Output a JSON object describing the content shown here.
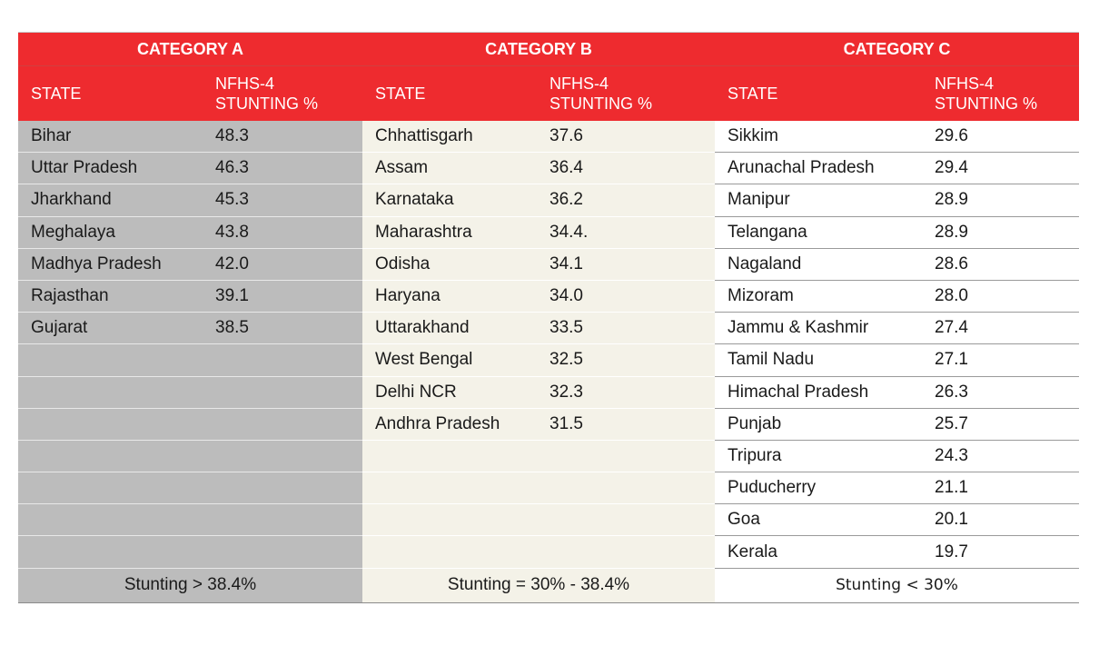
{
  "categories": [
    "CATEGORY A",
    "CATEGORY B",
    "CATEGORY C"
  ],
  "headers": {
    "state": "STATE",
    "stunting_line1": "NFHS-4",
    "stunting_line2": "STUNTING %"
  },
  "rows": [
    {
      "a_state": "Bihar",
      "a_val": "48.3",
      "b_state": "Chhattisgarh",
      "b_val": "37.6",
      "c_state": "Sikkim",
      "c_val": "29.6"
    },
    {
      "a_state": "Uttar Pradesh",
      "a_val": "46.3",
      "b_state": "Assam",
      "b_val": "36.4",
      "c_state": "Arunachal Pradesh",
      "c_val": "29.4"
    },
    {
      "a_state": "Jharkhand",
      "a_val": "45.3",
      "b_state": "Karnataka",
      "b_val": "36.2",
      "c_state": "Manipur",
      "c_val": "28.9"
    },
    {
      "a_state": "Meghalaya",
      "a_val": "43.8",
      "b_state": "Maharashtra",
      "b_val": "34.4.",
      "c_state": "Telangana",
      "c_val": "28.9"
    },
    {
      "a_state": "Madhya Pradesh",
      "a_val": "42.0",
      "b_state": "Odisha",
      "b_val": "34.1",
      "c_state": "Nagaland",
      "c_val": "28.6"
    },
    {
      "a_state": "Rajasthan",
      "a_val": "39.1",
      "b_state": "Haryana",
      "b_val": "34.0",
      "c_state": "Mizoram",
      "c_val": "28.0"
    },
    {
      "a_state": "Gujarat",
      "a_val": "38.5",
      "b_state": "Uttarakhand",
      "b_val": "33.5",
      "c_state": "Jammu & Kashmir",
      "c_val": "27.4"
    },
    {
      "a_state": "",
      "a_val": "",
      "b_state": "West Bengal",
      "b_val": "32.5",
      "c_state": "Tamil Nadu",
      "c_val": "27.1"
    },
    {
      "a_state": "",
      "a_val": "",
      "b_state": "Delhi NCR",
      "b_val": "32.3",
      "c_state": "Himachal Pradesh",
      "c_val": "26.3"
    },
    {
      "a_state": "",
      "a_val": "",
      "b_state": "Andhra Pradesh",
      "b_val": "31.5",
      "c_state": "Punjab",
      "c_val": "25.7"
    },
    {
      "a_state": "",
      "a_val": "",
      "b_state": "",
      "b_val": "",
      "c_state": "Tripura",
      "c_val": "24.3"
    },
    {
      "a_state": "",
      "a_val": "",
      "b_state": "",
      "b_val": "",
      "c_state": "Puducherry",
      "c_val": "21.1"
    },
    {
      "a_state": "",
      "a_val": "",
      "b_state": "",
      "b_val": "",
      "c_state": "Goa",
      "c_val": "20.1"
    },
    {
      "a_state": "",
      "a_val": "",
      "b_state": "",
      "b_val": "",
      "c_state": "Kerala",
      "c_val": "19.7"
    }
  ],
  "footer": {
    "a": "Stunting > 38.4%",
    "b": "Stunting = 30% - 38.4%",
    "c": "Stunting < 30%"
  },
  "colors": {
    "header_red": "#ee2b2f",
    "category_a_bg": "#bcbcbc",
    "category_b_bg": "#f4f2e8",
    "category_c_bg": "#ffffff"
  }
}
